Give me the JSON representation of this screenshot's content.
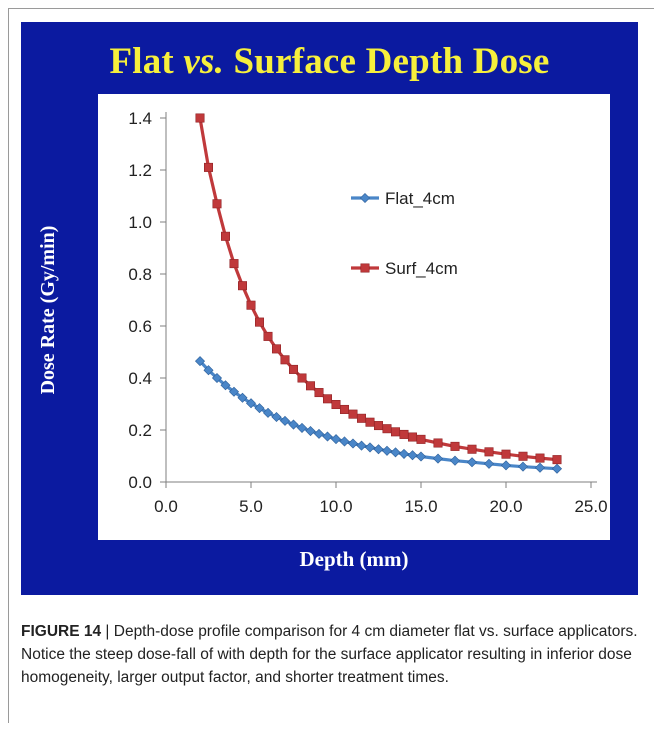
{
  "title": {
    "pre": "Flat ",
    "mid": "vs.",
    "post": " Surface Depth Dose"
  },
  "caption": {
    "label": "FIGURE 14",
    "text": " | Depth-dose profile comparison for 4 cm diameter flat vs. surface applicators. Notice the steep dose-fall of with depth for the surface applicator resulting in inferior dose homogeneity, larger output factor, and shorter treatment times."
  },
  "colors": {
    "panel": "#0b1aa0",
    "title": "#f6ef3c",
    "flat": "#4a86c8",
    "surf": "#c0393b"
  },
  "chart_data": {
    "type": "line",
    "xlabel": "Depth (mm)",
    "ylabel": "Dose Rate (Gy/min)",
    "xlim": [
      0,
      25
    ],
    "ylim": [
      0,
      1.4
    ],
    "xticks": [
      "0.0",
      "5.0",
      "10.0",
      "15.0",
      "20.0",
      "25.0"
    ],
    "yticks": [
      "0.0",
      "0.2",
      "0.4",
      "0.6",
      "0.8",
      "1.0",
      "1.2",
      "1.4"
    ],
    "grid": false,
    "legend_position": "right",
    "series": [
      {
        "name": "Flat_4cm",
        "marker": "diamond",
        "x": [
          2.0,
          2.5,
          3.0,
          3.5,
          4.0,
          4.5,
          5.0,
          5.5,
          6.0,
          6.5,
          7.0,
          7.5,
          8.0,
          8.5,
          9.0,
          9.5,
          10.0,
          10.5,
          11.0,
          11.5,
          12.0,
          12.5,
          13.0,
          13.5,
          14.0,
          14.5,
          15.0,
          16.0,
          17.0,
          18.0,
          19.0,
          20.0,
          21.0,
          22.0,
          23.0
        ],
        "y": [
          0.465,
          0.43,
          0.4,
          0.372,
          0.347,
          0.324,
          0.303,
          0.284,
          0.266,
          0.25,
          0.235,
          0.221,
          0.208,
          0.196,
          0.185,
          0.175,
          0.165,
          0.156,
          0.148,
          0.14,
          0.133,
          0.126,
          0.12,
          0.114,
          0.108,
          0.103,
          0.098,
          0.09,
          0.082,
          0.076,
          0.07,
          0.064,
          0.059,
          0.055,
          0.051
        ]
      },
      {
        "name": "Surf_4cm",
        "marker": "square",
        "x": [
          2.0,
          2.5,
          3.0,
          3.5,
          4.0,
          4.5,
          5.0,
          5.5,
          6.0,
          6.5,
          7.0,
          7.5,
          8.0,
          8.5,
          9.0,
          9.5,
          10.0,
          10.5,
          11.0,
          11.5,
          12.0,
          12.5,
          13.0,
          13.5,
          14.0,
          14.5,
          15.0,
          16.0,
          17.0,
          18.0,
          19.0,
          20.0,
          21.0,
          22.0,
          23.0
        ],
        "y": [
          1.4,
          1.21,
          1.07,
          0.945,
          0.84,
          0.755,
          0.68,
          0.615,
          0.56,
          0.512,
          0.47,
          0.433,
          0.4,
          0.37,
          0.344,
          0.32,
          0.298,
          0.279,
          0.261,
          0.245,
          0.23,
          0.217,
          0.205,
          0.193,
          0.183,
          0.173,
          0.164,
          0.15,
          0.137,
          0.126,
          0.116,
          0.107,
          0.099,
          0.092,
          0.086
        ]
      }
    ]
  }
}
